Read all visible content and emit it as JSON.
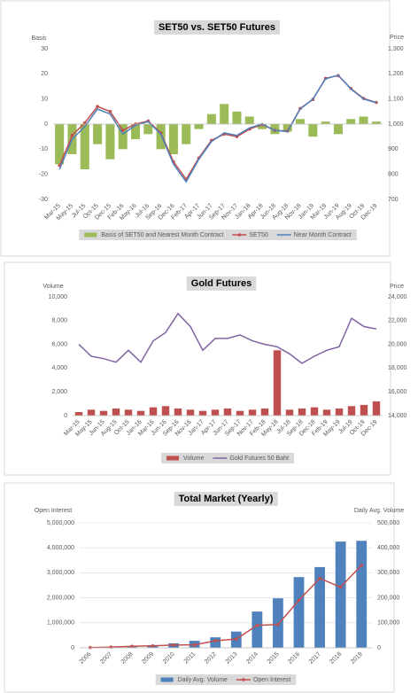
{
  "chart_data": [
    {
      "type": "combo",
      "title": "SET50 vs. SET50 Futures",
      "ylabel": "Basis",
      "y2label": "Price",
      "categories": [
        "Mar-15",
        "May-15",
        "Jul-15",
        "Oct-15",
        "Dec-15",
        "Feb-16",
        "May-16",
        "Jul-16",
        "Sep-16",
        "Dec-16",
        "Feb-17",
        "Apr-17",
        "Jun-17",
        "Sep-17",
        "Nov-17",
        "Jan-18",
        "Apr-18",
        "Jun-18",
        "Aug-18",
        "Nov-18",
        "Jan-19",
        "Mar-19",
        "Jun-19",
        "Aug-19",
        "Oct-19",
        "Dec-19"
      ],
      "series": [
        {
          "name": "Basis of SET50 and Nearest Month Contract",
          "kind": "bar",
          "color": "#9bbb59",
          "values": [
            -16,
            -12,
            -18,
            -8,
            -14,
            -10,
            -6,
            -4,
            -10,
            -12,
            -8,
            -2,
            4,
            8,
            5,
            3,
            -2,
            -4,
            -3,
            2,
            -5,
            1,
            -4,
            2,
            3,
            1
          ]
        },
        {
          "name": "SET50",
          "kind": "line",
          "axis": "y2",
          "marker": true,
          "color": "#c0504d",
          "values": [
            835,
            955,
            1005,
            1070,
            1050,
            975,
            1000,
            1012,
            965,
            850,
            780,
            865,
            935,
            960,
            950,
            980,
            998,
            975,
            972,
            1062,
            1098,
            1182,
            1193,
            1142,
            1102,
            1086
          ]
        },
        {
          "name": "Near Month Contract",
          "kind": "line",
          "axis": "y2",
          "color": "#4f81bd",
          "values": [
            820,
            940,
            990,
            1060,
            1040,
            960,
            995,
            1010,
            960,
            840,
            770,
            860,
            930,
            965,
            955,
            985,
            1000,
            975,
            970,
            1060,
            1100,
            1180,
            1195,
            1140,
            1100,
            1085
          ]
        }
      ],
      "ylim": [
        -30,
        30
      ],
      "yticks": [
        -30,
        -20,
        -10,
        0,
        10,
        20,
        30
      ],
      "y2lim": [
        700,
        1300
      ],
      "y2ticks": [
        {
          "value": 700,
          "label": "700"
        },
        {
          "value": 800,
          "label": "800"
        },
        {
          "value": 900,
          "label": "900"
        },
        {
          "value": 1000,
          "label": "1,000"
        },
        {
          "value": 1100,
          "label": "1,100"
        },
        {
          "value": 1200,
          "label": "1,200"
        },
        {
          "value": 1300,
          "label": "1,300"
        }
      ],
      "grid": false,
      "legend": "bottom"
    },
    {
      "type": "combo",
      "title": "Gold Futures",
      "ylabel": "Volume",
      "y2label": "Price",
      "categories": [
        "Mar-15",
        "May-15",
        "Jun-15",
        "Aug-15",
        "Oct-15",
        "Jan-16",
        "Mar-16",
        "Jun-16",
        "Sep-16",
        "Nov-16",
        "Jan-17",
        "Apr-17",
        "Jun-17",
        "Sep-17",
        "Nov-17",
        "Feb-18",
        "May-18",
        "Jul-18",
        "Sep-18",
        "Dec-18",
        "Feb-19",
        "May-19",
        "Jul-19",
        "Oct-19",
        "Dec-19"
      ],
      "series": [
        {
          "name": "Volume",
          "kind": "bar",
          "color": "#c0504d",
          "values": [
            300,
            500,
            400,
            600,
            500,
            400,
            700,
            800,
            600,
            500,
            400,
            500,
            600,
            400,
            500,
            600,
            5500,
            500,
            600,
            700,
            500,
            600,
            800,
            900,
            1200
          ]
        },
        {
          "name": "Gold Futures 50 Baht",
          "kind": "line",
          "axis": "y2",
          "color": "#8064a2",
          "values": [
            20000,
            19000,
            18800,
            18500,
            19500,
            18500,
            20300,
            21000,
            22600,
            21500,
            19500,
            20500,
            20500,
            20800,
            20300,
            20000,
            19800,
            19200,
            18400,
            19000,
            19500,
            19800,
            22200,
            21500,
            21300
          ]
        }
      ],
      "ylim": [
        0,
        10000
      ],
      "yticks": [
        0,
        {
          "value": 2000,
          "label": "2,000"
        },
        {
          "value": 4000,
          "label": "4,000"
        },
        {
          "value": 6000,
          "label": "6,000"
        },
        {
          "value": 8000,
          "label": "8,000"
        },
        {
          "value": 10000,
          "label": "10,000"
        }
      ],
      "y2lim": [
        14000,
        24000
      ],
      "y2ticks": [
        {
          "value": 14000,
          "label": "14,000"
        },
        {
          "value": 16000,
          "label": "16,000"
        },
        {
          "value": 18000,
          "label": "18,000"
        },
        {
          "value": 20000,
          "label": "20,000"
        },
        {
          "value": 22000,
          "label": "22,000"
        },
        {
          "value": 24000,
          "label": "24,000"
        }
      ],
      "grid": false,
      "legend": "bottom"
    },
    {
      "type": "combo",
      "title": "Total Market (Yearly)",
      "ylabel": "Open Interest",
      "y2label": "Daily Avg. Volume",
      "categories": [
        "2006",
        "2007",
        "2008",
        "2009",
        "2010",
        "2011",
        "2012",
        "2013",
        "2014",
        "2015",
        "2016",
        "2017",
        "2018",
        "2019"
      ],
      "series": [
        {
          "name": "Daily Avg. Volume",
          "kind": "bar",
          "axis": "y2",
          "color": "#4f81bd",
          "values": [
            500,
            2000,
            5000,
            11000,
            18000,
            28000,
            42000,
            65000,
            145000,
            198000,
            283000,
            323000,
            425000,
            428000
          ]
        },
        {
          "name": "Open Interest",
          "kind": "line",
          "marker": true,
          "color": "#c0504d",
          "values": [
            10000,
            30000,
            60000,
            80000,
            110000,
            120000,
            280000,
            350000,
            900000,
            930000,
            1900000,
            2780000,
            2430000,
            3300000
          ]
        }
      ],
      "ylim": [
        0,
        5000000
      ],
      "yticks": [
        0,
        {
          "value": 1000000,
          "label": "1,000,000"
        },
        {
          "value": 2000000,
          "label": "2,000,000"
        },
        {
          "value": 3000000,
          "label": "3,000,000"
        },
        {
          "value": 4000000,
          "label": "4,000,000"
        },
        {
          "value": 5000000,
          "label": "5,000,000"
        }
      ],
      "y2lim": [
        0,
        500000
      ],
      "y2ticks": [
        0,
        {
          "value": 100000,
          "label": "100,000"
        },
        {
          "value": 200000,
          "label": "200,000"
        },
        {
          "value": 300000,
          "label": "300,000"
        },
        {
          "value": 400000,
          "label": "400,000"
        },
        {
          "value": 500000,
          "label": "500,000"
        }
      ],
      "grid": true,
      "legend": "bottom"
    }
  ]
}
